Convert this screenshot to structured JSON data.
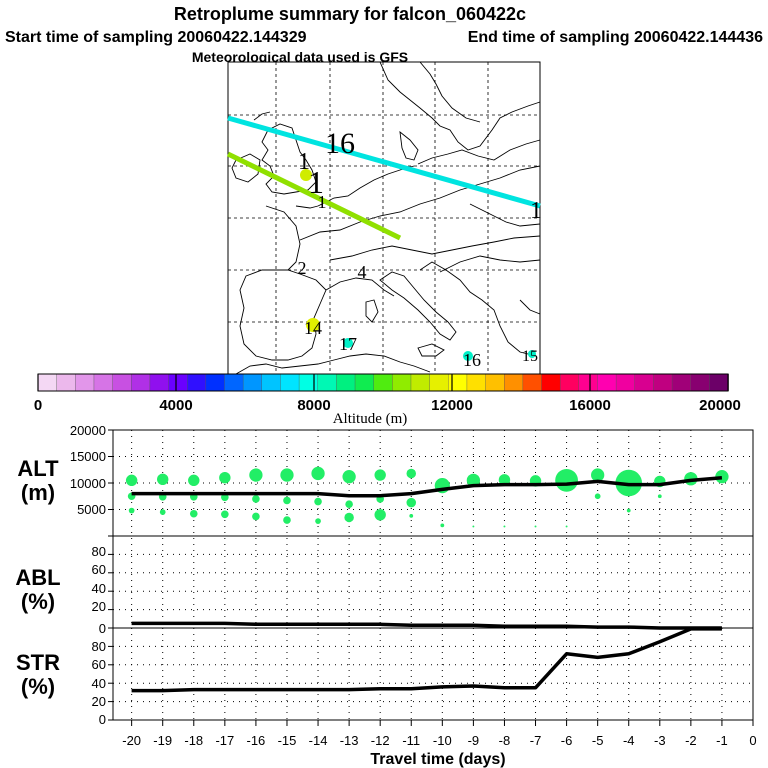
{
  "header": {
    "title": "Retroplume summary for falcon_060422c",
    "start_time": "Start time of sampling 20060422.144329",
    "end_time": "End time of sampling 20060422.144436",
    "met_data": "Meteorological data used is GFS"
  },
  "colorbar": {
    "label": "Altitude (m)",
    "ticks": [
      "0",
      "4000",
      "8000",
      "12000",
      "16000",
      "20000"
    ],
    "colors": [
      "#f4d8f4",
      "#ecb8ec",
      "#e296ea",
      "#d674e6",
      "#c850e2",
      "#b030e6",
      "#9010ee",
      "#6a00ff",
      "#3010ff",
      "#0030ff",
      "#0066ff",
      "#0096ff",
      "#00c4ff",
      "#00e4ff",
      "#00ffe4",
      "#00f8b4",
      "#00f080",
      "#10ec50",
      "#50ec10",
      "#90ec00",
      "#c0ec00",
      "#e6f000",
      "#ffff00",
      "#ffe000",
      "#ffc000",
      "#ff9000",
      "#ff5000",
      "#ff0000",
      "#ff0060",
      "#ff0090",
      "#ff00b0",
      "#f000a0",
      "#d80090",
      "#c00080",
      "#a00078",
      "#880070",
      "#6c0068"
    ]
  },
  "map": {
    "labels": [
      "16",
      "1",
      "1",
      "1",
      "1",
      "2",
      "4",
      "14",
      "17",
      "16",
      "15"
    ]
  },
  "chart_data": [
    {
      "type": "line",
      "panel": "ALT",
      "ylabel": "ALT (m)",
      "ylim": [
        0,
        20000
      ],
      "yticks": [
        "20000",
        "15000",
        "10000",
        "5000"
      ],
      "x": [
        -20,
        -19,
        -18,
        -17,
        -16,
        -15,
        -14,
        -13,
        -12,
        -11,
        -10,
        -9,
        -8,
        -7,
        -6,
        -5,
        -4,
        -3,
        -2,
        -1
      ],
      "series": [
        {
          "name": "median altitude",
          "values": [
            8000,
            8000,
            8000,
            8000,
            8000,
            8000,
            8000,
            7600,
            7600,
            8000,
            8800,
            9500,
            9700,
            9700,
            9800,
            10300,
            9700,
            9700,
            10500,
            11000
          ]
        }
      ],
      "bubbles": [
        {
          "x": -20,
          "y": 10500,
          "s": 6
        },
        {
          "x": -20,
          "y": 7500,
          "s": 4
        },
        {
          "x": -20,
          "y": 4800,
          "s": 3
        },
        {
          "x": -19,
          "y": 10700,
          "s": 6
        },
        {
          "x": -19,
          "y": 7400,
          "s": 4
        },
        {
          "x": -19,
          "y": 4500,
          "s": 3
        },
        {
          "x": -18,
          "y": 10500,
          "s": 6
        },
        {
          "x": -18,
          "y": 7400,
          "s": 4
        },
        {
          "x": -18,
          "y": 4200,
          "s": 4
        },
        {
          "x": -17,
          "y": 11000,
          "s": 6
        },
        {
          "x": -17,
          "y": 7300,
          "s": 4
        },
        {
          "x": -17,
          "y": 4100,
          "s": 4
        },
        {
          "x": -16,
          "y": 11500,
          "s": 7
        },
        {
          "x": -16,
          "y": 7000,
          "s": 4
        },
        {
          "x": -16,
          "y": 3700,
          "s": 4
        },
        {
          "x": -15,
          "y": 11500,
          "s": 7
        },
        {
          "x": -15,
          "y": 6700,
          "s": 4
        },
        {
          "x": -15,
          "y": 3000,
          "s": 4
        },
        {
          "x": -14,
          "y": 11800,
          "s": 7
        },
        {
          "x": -14,
          "y": 6500,
          "s": 4
        },
        {
          "x": -14,
          "y": 2800,
          "s": 3
        },
        {
          "x": -13,
          "y": 11200,
          "s": 7
        },
        {
          "x": -13,
          "y": 6000,
          "s": 4
        },
        {
          "x": -13,
          "y": 3500,
          "s": 5
        },
        {
          "x": -12,
          "y": 11500,
          "s": 6
        },
        {
          "x": -12,
          "y": 7000,
          "s": 4
        },
        {
          "x": -12,
          "y": 4000,
          "s": 6
        },
        {
          "x": -11,
          "y": 11800,
          "s": 5
        },
        {
          "x": -11,
          "y": 6300,
          "s": 5
        },
        {
          "x": -11,
          "y": 3800,
          "s": 2
        },
        {
          "x": -10,
          "y": 9500,
          "s": 8
        },
        {
          "x": -10,
          "y": 2000,
          "s": 2
        },
        {
          "x": -9,
          "y": 10500,
          "s": 7
        },
        {
          "x": -9,
          "y": 1800,
          "s": 1
        },
        {
          "x": -8,
          "y": 10600,
          "s": 6
        },
        {
          "x": -8,
          "y": 1800,
          "s": 1
        },
        {
          "x": -7,
          "y": 10400,
          "s": 6
        },
        {
          "x": -7,
          "y": 1800,
          "s": 1
        },
        {
          "x": -6,
          "y": 10500,
          "s": 12
        },
        {
          "x": -6,
          "y": 1800,
          "s": 1
        },
        {
          "x": -5,
          "y": 11500,
          "s": 7
        },
        {
          "x": -5,
          "y": 7500,
          "s": 3
        },
        {
          "x": -4,
          "y": 10000,
          "s": 14
        },
        {
          "x": -4,
          "y": 4800,
          "s": 2
        },
        {
          "x": -3,
          "y": 10300,
          "s": 6
        },
        {
          "x": -3,
          "y": 7500,
          "s": 2
        },
        {
          "x": -2,
          "y": 10800,
          "s": 7
        },
        {
          "x": -1,
          "y": 11200,
          "s": 7
        }
      ]
    },
    {
      "type": "line",
      "panel": "ABL",
      "ylabel": "ABL (%)",
      "ylim": [
        0,
        100
      ],
      "yticks": [
        "80",
        "60",
        "40",
        "20",
        "0"
      ],
      "x": [
        -20,
        -19,
        -18,
        -17,
        -16,
        -15,
        -14,
        -13,
        -12,
        -11,
        -10,
        -9,
        -8,
        -7,
        -6,
        -5,
        -4,
        -3,
        -2,
        -1
      ],
      "series": [
        {
          "name": "percent in ABL",
          "values": [
            5,
            5,
            5,
            5,
            4,
            4,
            4,
            4,
            4,
            3,
            3,
            3,
            2,
            2,
            2,
            1,
            1,
            0,
            0,
            0
          ]
        }
      ]
    },
    {
      "type": "line",
      "panel": "STR",
      "ylabel": "STR (%)",
      "ylim": [
        0,
        100
      ],
      "yticks": [
        "80",
        "60",
        "40",
        "20",
        "0"
      ],
      "x": [
        -20,
        -19,
        -18,
        -17,
        -16,
        -15,
        -14,
        -13,
        -12,
        -11,
        -10,
        -9,
        -8,
        -7,
        -6,
        -5,
        -4,
        -3,
        -2,
        -1
      ],
      "series": [
        {
          "name": "percent in stratosphere",
          "values": [
            32,
            32,
            33,
            33,
            33,
            33,
            33,
            33,
            34,
            34,
            36,
            37,
            35,
            35,
            72,
            68,
            72,
            85,
            99,
            99
          ]
        }
      ],
      "xlabel": "Travel time (days)",
      "xticks": [
        "-20",
        "-19",
        "-18",
        "-17",
        "-16",
        "-15",
        "-14",
        "-13",
        "-12",
        "-11",
        "-10",
        "-9",
        "-8",
        "-7",
        "-6",
        "-5",
        "-4",
        "-3",
        "-2",
        "-1",
        "0"
      ]
    }
  ],
  "panel_labels": {
    "alt_top": "ALT",
    "alt_bottom": "(m)",
    "abl_top": "ABL",
    "abl_bottom": "(%)",
    "str_top": "STR",
    "str_bottom": "(%)"
  }
}
